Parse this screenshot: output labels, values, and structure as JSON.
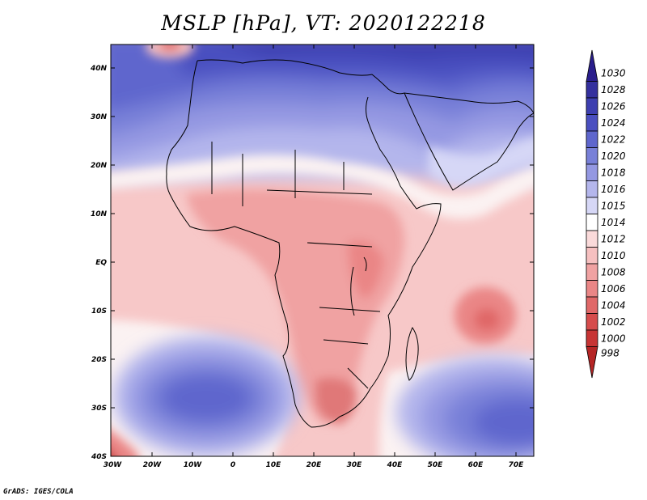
{
  "title": "MSLP [hPa], VT: 2020122218",
  "credit": "GrADS: IGES/COLA",
  "map": {
    "lat_labels": [
      "40N",
      "30N",
      "20N",
      "10N",
      "EQ",
      "10S",
      "20S",
      "30S",
      "40S"
    ],
    "lon_labels": [
      "30W",
      "20W",
      "10W",
      "0",
      "10E",
      "20E",
      "30E",
      "40E",
      "50E",
      "60E",
      "70E"
    ]
  },
  "colorbar": {
    "levels": [
      {
        "label": "1030",
        "color": "#2a1e8c"
      },
      {
        "label": "1028",
        "color": "#34309e"
      },
      {
        "label": "1026",
        "color": "#3d3fb0"
      },
      {
        "label": "1024",
        "color": "#4a4fc0"
      },
      {
        "label": "1022",
        "color": "#5e66cd"
      },
      {
        "label": "1020",
        "color": "#7880d8"
      },
      {
        "label": "1018",
        "color": "#9498e2"
      },
      {
        "label": "1016",
        "color": "#b4b6ec"
      },
      {
        "label": "1015",
        "color": "#d6d7f6"
      },
      {
        "label": "1014",
        "color": "#ffffff"
      },
      {
        "label": "1012",
        "color": "#fadada"
      },
      {
        "label": "1010",
        "color": "#f6c0c0"
      },
      {
        "label": "1008",
        "color": "#f0a2a2"
      },
      {
        "label": "1006",
        "color": "#ea8686"
      },
      {
        "label": "1004",
        "color": "#e06868"
      },
      {
        "label": "1002",
        "color": "#d64c4c"
      },
      {
        "label": "1000",
        "color": "#c73434"
      },
      {
        "label": "998",
        "color": "#b52525"
      }
    ]
  }
}
